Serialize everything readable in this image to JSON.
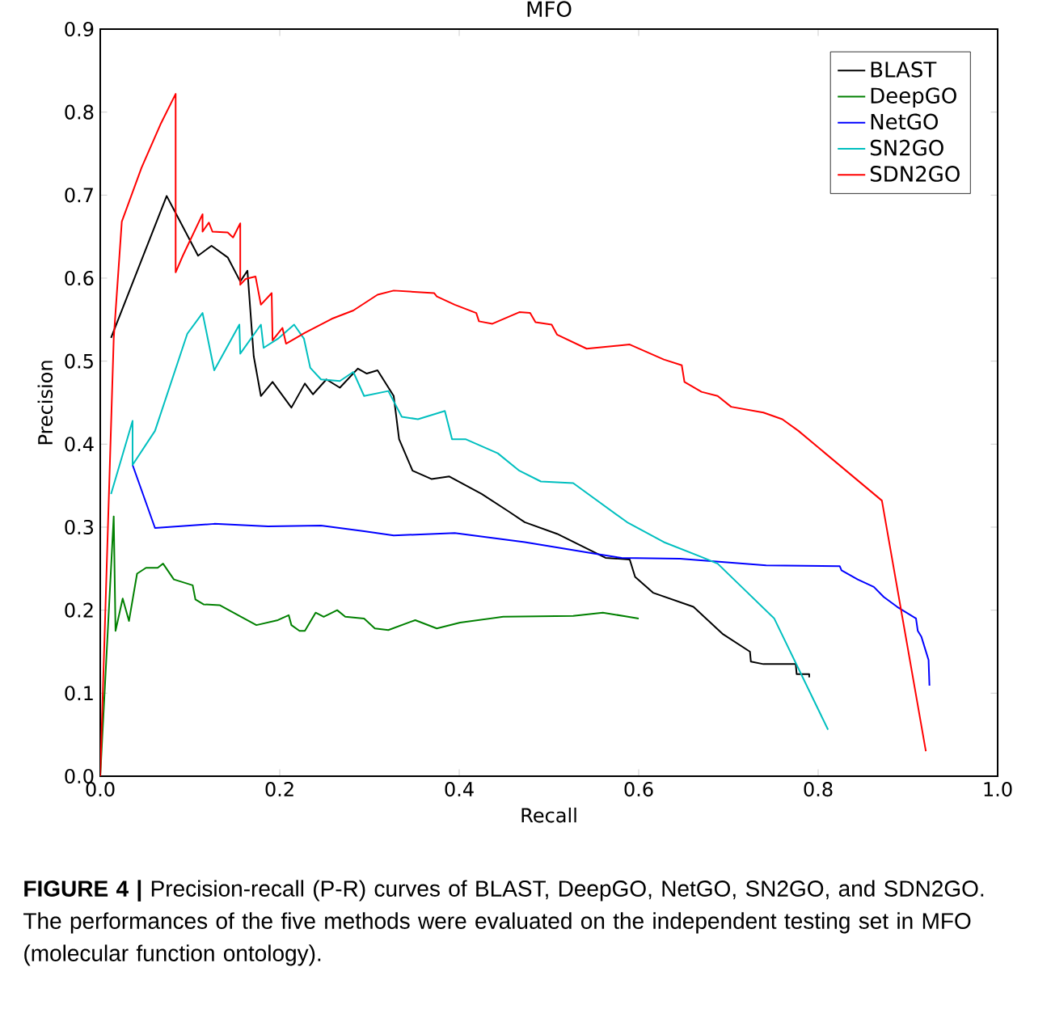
{
  "chart_data": {
    "type": "line",
    "title": "MFO",
    "xlabel": "Recall",
    "ylabel": "Precision",
    "xlim": [
      0.0,
      1.0
    ],
    "ylim": [
      0.0,
      0.9
    ],
    "xticks": [
      {
        "value": 0,
        "label": "0.0"
      },
      0.2,
      0.4,
      0.6,
      0.8,
      {
        "value": 1,
        "label": "1.0"
      }
    ],
    "yticks": [
      {
        "value": 0,
        "label": "0.0"
      },
      0.1,
      0.2,
      0.3,
      0.4,
      0.5,
      0.6,
      0.7,
      0.8,
      0.9
    ],
    "legend": "top right",
    "line_style": "solid",
    "series": [
      {
        "name": "BLAST",
        "color": "#000000",
        "x": [
          0.012,
          0.074,
          0.109,
          0.124,
          0.142,
          0.156,
          0.164,
          0.171,
          0.179,
          0.192,
          0.213,
          0.228,
          0.237,
          0.252,
          0.267,
          0.287,
          0.297,
          0.309,
          0.327,
          0.333,
          0.348,
          0.369,
          0.389,
          0.425,
          0.455,
          0.473,
          0.509,
          0.563,
          0.59,
          0.596,
          0.616,
          0.661,
          0.694,
          0.724,
          0.725,
          0.739,
          0.775,
          0.776,
          0.79,
          0.79
        ],
        "values": [
          0.528,
          0.699,
          0.627,
          0.639,
          0.625,
          0.596,
          0.609,
          0.506,
          0.458,
          0.475,
          0.444,
          0.473,
          0.46,
          0.478,
          0.468,
          0.491,
          0.485,
          0.489,
          0.458,
          0.406,
          0.368,
          0.358,
          0.361,
          0.34,
          0.319,
          0.306,
          0.292,
          0.263,
          0.261,
          0.24,
          0.221,
          0.204,
          0.171,
          0.15,
          0.138,
          0.135,
          0.135,
          0.123,
          0.123,
          0.119
        ]
      },
      {
        "name": "DeepGO",
        "color": "#008000",
        "x": [
          0,
          0.015,
          0.017,
          0.025,
          0.032,
          0.041,
          0.051,
          0.064,
          0.07,
          0.082,
          0.103,
          0.106,
          0.115,
          0.133,
          0.174,
          0.198,
          0.21,
          0.213,
          0.222,
          0.228,
          0.24,
          0.249,
          0.264,
          0.273,
          0.294,
          0.306,
          0.321,
          0.351,
          0.375,
          0.401,
          0.449,
          0.527,
          0.56,
          0.6
        ],
        "values": [
          0,
          0.313,
          0.175,
          0.214,
          0.187,
          0.244,
          0.251,
          0.251,
          0.256,
          0.237,
          0.23,
          0.213,
          0.207,
          0.206,
          0.182,
          0.188,
          0.194,
          0.182,
          0.175,
          0.175,
          0.197,
          0.192,
          0.2,
          0.192,
          0.19,
          0.178,
          0.176,
          0.188,
          0.178,
          0.185,
          0.192,
          0.193,
          0.197,
          0.19
        ]
      },
      {
        "name": "NetGO",
        "color": "#0000ff",
        "x": [
          0.036,
          0.061,
          0.127,
          0.187,
          0.246,
          0.294,
          0.327,
          0.395,
          0.473,
          0.551,
          0.581,
          0.646,
          0.742,
          0.824,
          0.826,
          0.844,
          0.862,
          0.873,
          0.888,
          0.909,
          0.911,
          0.915,
          0.919,
          0.923,
          0.924
        ],
        "values": [
          0.375,
          0.299,
          0.304,
          0.301,
          0.302,
          0.295,
          0.29,
          0.293,
          0.282,
          0.268,
          0.263,
          0.262,
          0.254,
          0.253,
          0.248,
          0.237,
          0.228,
          0.216,
          0.204,
          0.19,
          0.175,
          0.168,
          0.154,
          0.14,
          0.109
        ]
      },
      {
        "name": "SN2GO",
        "color": "#00bfbf",
        "x": [
          0.012,
          0.036,
          0.036,
          0.061,
          0.097,
          0.114,
          0.127,
          0.155,
          0.156,
          0.179,
          0.182,
          0.198,
          0.216,
          0.227,
          0.234,
          0.246,
          0.267,
          0.282,
          0.294,
          0.321,
          0.336,
          0.354,
          0.384,
          0.392,
          0.407,
          0.443,
          0.467,
          0.491,
          0.527,
          0.587,
          0.628,
          0.67,
          0.688,
          0.751,
          0.811
        ],
        "values": [
          0.34,
          0.428,
          0.375,
          0.416,
          0.533,
          0.558,
          0.489,
          0.544,
          0.509,
          0.544,
          0.516,
          0.527,
          0.544,
          0.527,
          0.492,
          0.478,
          0.476,
          0.487,
          0.458,
          0.464,
          0.433,
          0.43,
          0.44,
          0.406,
          0.406,
          0.389,
          0.368,
          0.355,
          0.353,
          0.306,
          0.282,
          0.264,
          0.256,
          0.19,
          0.056
        ]
      },
      {
        "name": "SDN2GO",
        "color": "#ff0000",
        "x": [
          0,
          0.015,
          0.024,
          0.046,
          0.067,
          0.084,
          0.084,
          0.092,
          0.114,
          0.114,
          0.121,
          0.125,
          0.142,
          0.148,
          0.156,
          0.156,
          0.162,
          0.173,
          0.179,
          0.191,
          0.192,
          0.203,
          0.207,
          0.228,
          0.258,
          0.282,
          0.309,
          0.327,
          0.372,
          0.375,
          0.395,
          0.419,
          0.422,
          0.437,
          0.467,
          0.479,
          0.485,
          0.503,
          0.509,
          0.542,
          0.59,
          0.628,
          0.648,
          0.651,
          0.67,
          0.688,
          0.703,
          0.739,
          0.76,
          0.778,
          0.871,
          0.92
        ],
        "values": [
          0,
          0.527,
          0.668,
          0.733,
          0.785,
          0.822,
          0.607,
          0.627,
          0.677,
          0.656,
          0.667,
          0.656,
          0.655,
          0.649,
          0.666,
          0.592,
          0.599,
          0.602,
          0.568,
          0.582,
          0.525,
          0.54,
          0.521,
          0.534,
          0.551,
          0.561,
          0.58,
          0.585,
          0.582,
          0.578,
          0.568,
          0.558,
          0.548,
          0.545,
          0.559,
          0.558,
          0.547,
          0.544,
          0.532,
          0.515,
          0.52,
          0.502,
          0.495,
          0.475,
          0.463,
          0.458,
          0.445,
          0.438,
          0.43,
          0.416,
          0.332,
          0.03
        ]
      }
    ],
    "annotations": [
      "**FIGURE 4 |** Precision-recall (P-R) curves of BLAST, DeepGO, NetGO, SN2GO, and SDN2GO. The performances of the five methods were evaluated on the independent testing set in MFO (molecular function ontology)."
    ]
  }
}
